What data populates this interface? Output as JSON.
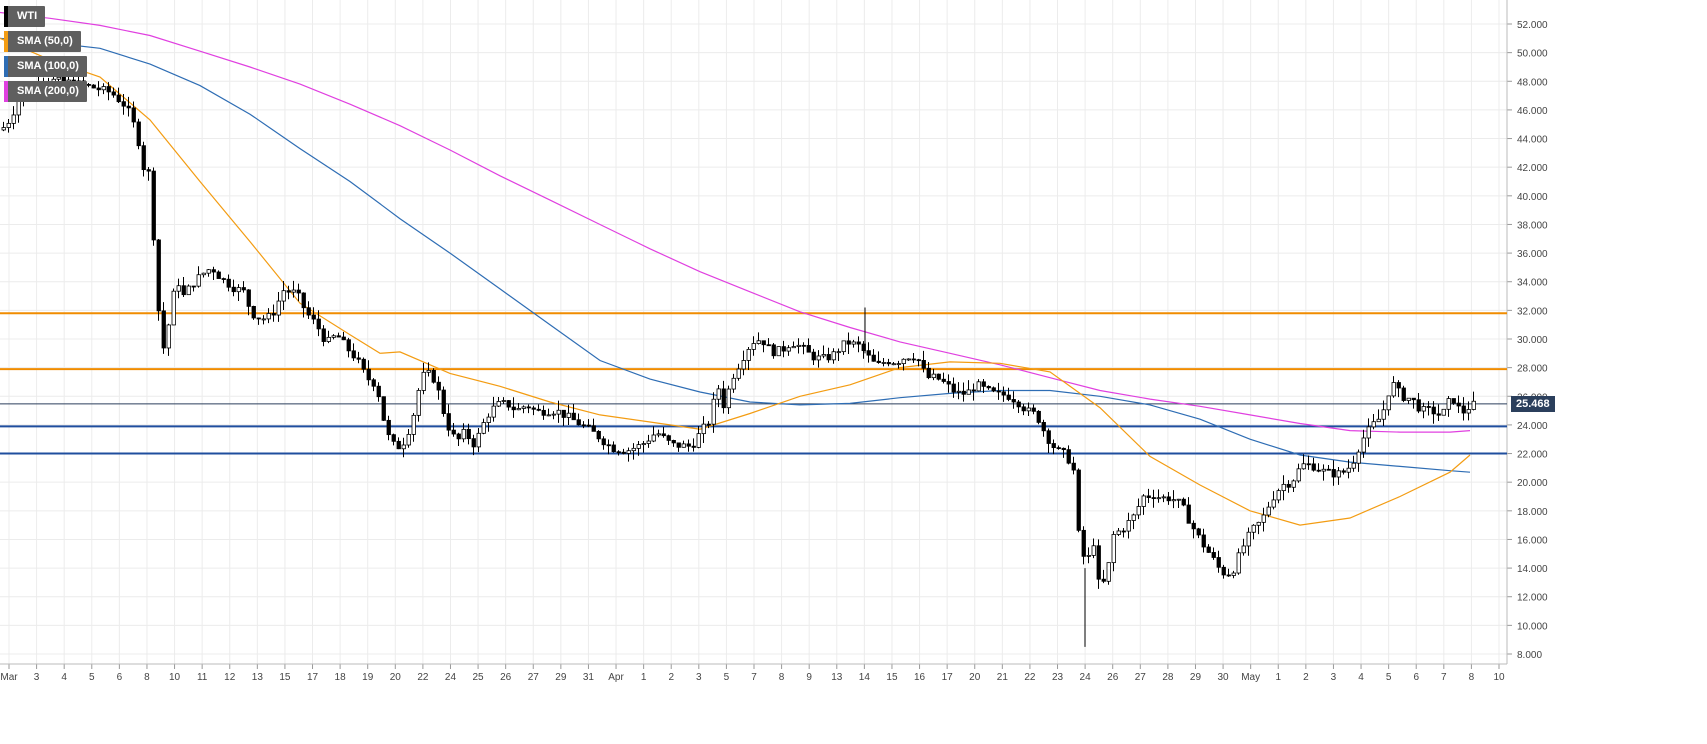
{
  "legend": [
    {
      "label": "WTI",
      "color": "#000000"
    },
    {
      "label": "SMA (50,0)",
      "color": "#f39c12"
    },
    {
      "label": "SMA (100,0)",
      "color": "#2e6db4"
    },
    {
      "label": "SMA (200,0)",
      "color": "#e040e0"
    }
  ],
  "last_price": "25.468",
  "chart_data": {
    "type": "candlestick",
    "title": "",
    "xlabel": "",
    "ylabel": "",
    "ylim": [
      8,
      52.5
    ],
    "grid": true,
    "legend_position": "top-left",
    "y_ticks": [
      "8.000",
      "10.000",
      "12.000",
      "14.000",
      "16.000",
      "18.000",
      "20.000",
      "22.000",
      "24.000",
      "26.000",
      "28.000",
      "30.000",
      "32.000",
      "34.000",
      "36.000",
      "38.000",
      "40.000",
      "42.000",
      "44.000",
      "46.000",
      "48.000",
      "50.000",
      "52.000"
    ],
    "x_ticks": [
      "Mar",
      "3",
      "4",
      "5",
      "6",
      "8",
      "10",
      "11",
      "12",
      "13",
      "15",
      "17",
      "18",
      "19",
      "20",
      "22",
      "24",
      "25",
      "26",
      "27",
      "29",
      "31",
      "Apr",
      "1",
      "2",
      "3",
      "5",
      "7",
      "8",
      "9",
      "13",
      "14",
      "15",
      "16",
      "17",
      "20",
      "21",
      "22",
      "23",
      "24",
      "26",
      "27",
      "28",
      "29",
      "30",
      "May",
      "1",
      "2",
      "3",
      "4",
      "5",
      "6",
      "7",
      "8",
      "10"
    ],
    "horizontal_levels": [
      {
        "value": 31.8,
        "color": "#f08c00"
      },
      {
        "value": 27.9,
        "color": "#f08c00"
      },
      {
        "value": 23.9,
        "color": "#1f4e9e"
      },
      {
        "value": 22.0,
        "color": "#1f4e9e"
      },
      {
        "value": 25.468,
        "color": "#2b3f5c"
      }
    ],
    "price_path": [
      [
        0,
        44.6
      ],
      [
        8,
        45.3
      ],
      [
        18,
        46.8
      ],
      [
        30,
        47.3
      ],
      [
        40,
        48.2
      ],
      [
        55,
        48.0
      ],
      [
        70,
        47.9
      ],
      [
        90,
        47.6
      ],
      [
        110,
        47.2
      ],
      [
        125,
        46.2
      ],
      [
        135,
        44.5
      ],
      [
        142,
        42.0
      ],
      [
        148,
        41.5
      ],
      [
        155,
        34.0
      ],
      [
        158,
        31.0
      ],
      [
        163,
        29.0
      ],
      [
        168,
        31.5
      ],
      [
        175,
        34.3
      ],
      [
        182,
        33.0
      ],
      [
        190,
        33.8
      ],
      [
        200,
        34.5
      ],
      [
        210,
        35.0
      ],
      [
        220,
        34.2
      ],
      [
        232,
        33.6
      ],
      [
        242,
        33.3
      ],
      [
        250,
        31.8
      ],
      [
        260,
        31.4
      ],
      [
        270,
        31.6
      ],
      [
        282,
        33.4
      ],
      [
        295,
        33.2
      ],
      [
        305,
        31.8
      ],
      [
        315,
        31.0
      ],
      [
        325,
        29.7
      ],
      [
        335,
        30.3
      ],
      [
        345,
        29.4
      ],
      [
        355,
        28.6
      ],
      [
        365,
        27.3
      ],
      [
        375,
        26.8
      ],
      [
        385,
        23.4
      ],
      [
        393,
        22.5
      ],
      [
        400,
        22.5
      ],
      [
        410,
        24.1
      ],
      [
        420,
        27.4
      ],
      [
        430,
        27.6
      ],
      [
        437,
        26.3
      ],
      [
        445,
        24.1
      ],
      [
        455,
        22.8
      ],
      [
        463,
        23.5
      ],
      [
        473,
        22.6
      ],
      [
        485,
        24.6
      ],
      [
        495,
        25.4
      ],
      [
        505,
        25.5
      ],
      [
        515,
        25.0
      ],
      [
        525,
        25.4
      ],
      [
        535,
        24.9
      ],
      [
        545,
        25.0
      ],
      [
        555,
        25.0
      ],
      [
        565,
        24.6
      ],
      [
        580,
        24.0
      ],
      [
        595,
        23.3
      ],
      [
        610,
        22.4
      ],
      [
        625,
        22.2
      ],
      [
        640,
        22.6
      ],
      [
        655,
        23.5
      ],
      [
        670,
        22.6
      ],
      [
        690,
        22.5
      ],
      [
        700,
        23.6
      ],
      [
        708,
        24.3
      ],
      [
        716,
        26.8
      ],
      [
        722,
        25.4
      ],
      [
        732,
        27.5
      ],
      [
        742,
        28.8
      ],
      [
        750,
        29.8
      ],
      [
        760,
        30.0
      ],
      [
        770,
        29.1
      ],
      [
        780,
        29.2
      ],
      [
        790,
        29.8
      ],
      [
        800,
        29.4
      ],
      [
        810,
        28.8
      ],
      [
        820,
        28.6
      ],
      [
        830,
        28.8
      ],
      [
        845,
        29.8
      ],
      [
        858,
        29.5
      ],
      [
        866,
        28.8
      ],
      [
        875,
        28.1
      ],
      [
        885,
        28.5
      ],
      [
        895,
        28.4
      ],
      [
        905,
        28.8
      ],
      [
        915,
        28.8
      ],
      [
        925,
        27.3
      ],
      [
        935,
        27.3
      ],
      [
        945,
        26.8
      ],
      [
        955,
        26.2
      ],
      [
        965,
        26.2
      ],
      [
        975,
        26.8
      ],
      [
        985,
        26.4
      ],
      [
        995,
        26.1
      ],
      [
        1005,
        26.1
      ],
      [
        1015,
        25.7
      ],
      [
        1025,
        25.0
      ],
      [
        1035,
        24.7
      ],
      [
        1045,
        23.2
      ],
      [
        1055,
        22.2
      ],
      [
        1065,
        21.9
      ],
      [
        1072,
        20.8
      ],
      [
        1078,
        15.5
      ],
      [
        1085,
        14.3
      ],
      [
        1092,
        15.8
      ],
      [
        1098,
        12.4
      ],
      [
        1105,
        13.4
      ],
      [
        1112,
        16.3
      ],
      [
        1122,
        16.8
      ],
      [
        1132,
        17.6
      ],
      [
        1142,
        19.0
      ],
      [
        1152,
        19.1
      ],
      [
        1160,
        18.9
      ],
      [
        1170,
        18.9
      ],
      [
        1180,
        18.4
      ],
      [
        1190,
        17.0
      ],
      [
        1200,
        15.8
      ],
      [
        1210,
        14.8
      ],
      [
        1220,
        13.7
      ],
      [
        1230,
        13.6
      ],
      [
        1240,
        15.3
      ],
      [
        1250,
        16.6
      ],
      [
        1260,
        17.3
      ],
      [
        1270,
        18.8
      ],
      [
        1280,
        19.8
      ],
      [
        1290,
        20.0
      ],
      [
        1300,
        21.2
      ],
      [
        1310,
        21.2
      ],
      [
        1320,
        20.8
      ],
      [
        1330,
        20.6
      ],
      [
        1340,
        20.6
      ],
      [
        1350,
        21.2
      ],
      [
        1360,
        22.9
      ],
      [
        1370,
        23.9
      ],
      [
        1380,
        24.6
      ],
      [
        1390,
        27.0
      ],
      [
        1400,
        26.0
      ],
      [
        1410,
        25.8
      ],
      [
        1420,
        25.0
      ],
      [
        1430,
        25.0
      ],
      [
        1440,
        24.6
      ],
      [
        1450,
        26.0
      ],
      [
        1460,
        24.8
      ],
      [
        1470,
        25.4
      ]
    ],
    "sma50_path": [
      [
        0,
        51.0
      ],
      [
        50,
        49.5
      ],
      [
        100,
        48.3
      ],
      [
        150,
        45.3
      ],
      [
        200,
        41.0
      ],
      [
        250,
        36.8
      ],
      [
        300,
        32.5
      ],
      [
        350,
        30.3
      ],
      [
        380,
        29.0
      ],
      [
        400,
        29.1
      ],
      [
        450,
        27.6
      ],
      [
        500,
        26.7
      ],
      [
        550,
        25.6
      ],
      [
        600,
        24.7
      ],
      [
        650,
        24.2
      ],
      [
        700,
        23.7
      ],
      [
        750,
        24.8
      ],
      [
        800,
        26.0
      ],
      [
        850,
        26.8
      ],
      [
        900,
        28.0
      ],
      [
        950,
        28.4
      ],
      [
        1000,
        28.3
      ],
      [
        1050,
        27.7
      ],
      [
        1100,
        25.2
      ],
      [
        1150,
        21.8
      ],
      [
        1200,
        19.8
      ],
      [
        1250,
        18.0
      ],
      [
        1300,
        17.0
      ],
      [
        1350,
        17.5
      ],
      [
        1400,
        19.0
      ],
      [
        1450,
        20.7
      ],
      [
        1470,
        21.9
      ]
    ],
    "sma100_path": [
      [
        0,
        51.0
      ],
      [
        50,
        50.7
      ],
      [
        100,
        50.3
      ],
      [
        150,
        49.2
      ],
      [
        200,
        47.7
      ],
      [
        250,
        45.7
      ],
      [
        300,
        43.3
      ],
      [
        350,
        41.0
      ],
      [
        400,
        38.4
      ],
      [
        450,
        36.0
      ],
      [
        500,
        33.5
      ],
      [
        550,
        31.0
      ],
      [
        600,
        28.5
      ],
      [
        650,
        27.2
      ],
      [
        700,
        26.3
      ],
      [
        750,
        25.6
      ],
      [
        800,
        25.4
      ],
      [
        850,
        25.5
      ],
      [
        900,
        25.9
      ],
      [
        950,
        26.2
      ],
      [
        1000,
        26.4
      ],
      [
        1050,
        26.4
      ],
      [
        1100,
        26.0
      ],
      [
        1150,
        25.4
      ],
      [
        1200,
        24.4
      ],
      [
        1250,
        23.0
      ],
      [
        1300,
        21.9
      ],
      [
        1350,
        21.4
      ],
      [
        1400,
        21.1
      ],
      [
        1450,
        20.8
      ],
      [
        1470,
        20.7
      ]
    ],
    "sma200_path": [
      [
        0,
        52.8
      ],
      [
        50,
        52.4
      ],
      [
        100,
        51.9
      ],
      [
        150,
        51.2
      ],
      [
        200,
        50.1
      ],
      [
        250,
        49.0
      ],
      [
        300,
        47.8
      ],
      [
        350,
        46.4
      ],
      [
        400,
        44.9
      ],
      [
        450,
        43.2
      ],
      [
        500,
        41.4
      ],
      [
        550,
        39.7
      ],
      [
        600,
        38.0
      ],
      [
        650,
        36.3
      ],
      [
        700,
        34.7
      ],
      [
        750,
        33.3
      ],
      [
        800,
        31.9
      ],
      [
        850,
        30.8
      ],
      [
        900,
        29.8
      ],
      [
        950,
        29.0
      ],
      [
        1000,
        28.2
      ],
      [
        1050,
        27.3
      ],
      [
        1100,
        26.4
      ],
      [
        1150,
        25.8
      ],
      [
        1200,
        25.3
      ],
      [
        1250,
        24.7
      ],
      [
        1300,
        24.1
      ],
      [
        1350,
        23.6
      ],
      [
        1400,
        23.5
      ],
      [
        1450,
        23.5
      ],
      [
        1470,
        23.6
      ]
    ]
  }
}
